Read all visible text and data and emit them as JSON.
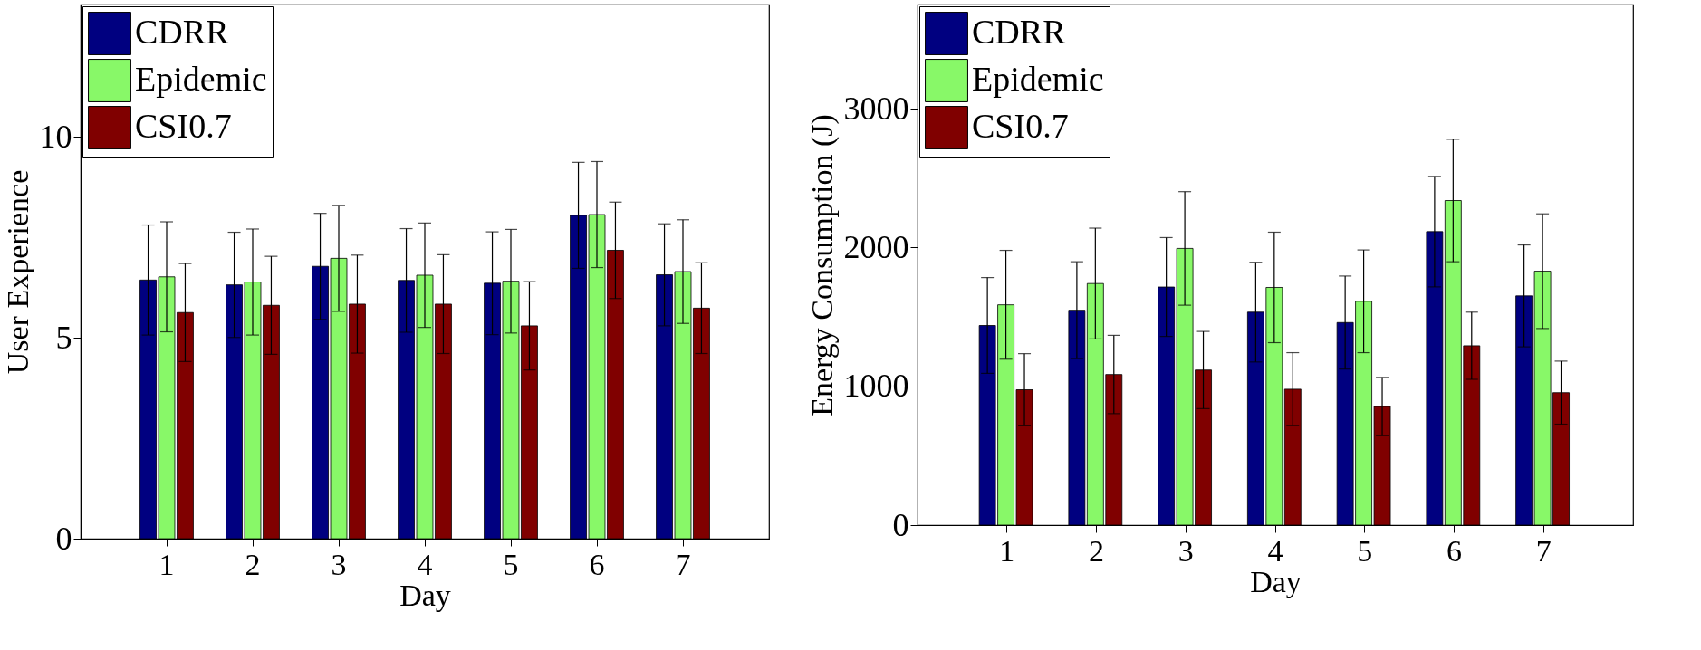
{
  "chart_data": [
    {
      "type": "bar",
      "xlabel": "Day",
      "ylabel": "User Experience",
      "categories": [
        "1",
        "2",
        "3",
        "4",
        "5",
        "6",
        "7"
      ],
      "ylim": [
        0,
        13.3
      ],
      "yticks": [
        0,
        5,
        10
      ],
      "grid": false,
      "legend": "top left",
      "series": [
        {
          "name": "CDRR",
          "color": "#000080",
          "values": [
            6.44,
            6.32,
            6.78,
            6.43,
            6.36,
            8.05,
            6.57
          ],
          "errors": [
            1.37,
            1.31,
            1.32,
            1.29,
            1.28,
            1.32,
            1.27
          ]
        },
        {
          "name": "Epidemic",
          "color": "#88f868",
          "values": [
            6.52,
            6.39,
            6.98,
            6.56,
            6.41,
            8.07,
            6.65
          ],
          "errors": [
            1.37,
            1.32,
            1.32,
            1.3,
            1.29,
            1.32,
            1.29
          ]
        },
        {
          "name": "CSI0.7",
          "color": "#800000",
          "values": [
            5.63,
            5.81,
            5.84,
            5.84,
            5.3,
            7.18,
            5.74
          ],
          "errors": [
            1.22,
            1.22,
            1.22,
            1.23,
            1.1,
            1.2,
            1.13
          ]
        }
      ]
    },
    {
      "type": "bar",
      "xlabel": "Day",
      "ylabel": "Energy Consumption (J)",
      "categories": [
        "1",
        "2",
        "3",
        "4",
        "5",
        "6",
        "7"
      ],
      "ylim": [
        0,
        3750
      ],
      "yticks": [
        0,
        1000,
        2000,
        3000
      ],
      "grid": false,
      "legend": "top left",
      "series": [
        {
          "name": "CDRR",
          "color": "#000080",
          "values": [
            1438,
            1548,
            1715,
            1534,
            1459,
            2114,
            1651
          ],
          "errors": [
            345,
            349,
            356,
            359,
            335,
            398,
            367
          ]
        },
        {
          "name": "Epidemic",
          "color": "#88f868",
          "values": [
            1587,
            1740,
            1993,
            1712,
            1612,
            2338,
            1829
          ],
          "errors": [
            392,
            399,
            409,
            398,
            370,
            441,
            413
          ]
        },
        {
          "name": "CSI0.7",
          "color": "#800000",
          "values": [
            975,
            1085,
            1117,
            979,
            854,
            1292,
            954
          ],
          "errors": [
            260,
            282,
            278,
            263,
            210,
            242,
            227
          ]
        }
      ]
    }
  ]
}
